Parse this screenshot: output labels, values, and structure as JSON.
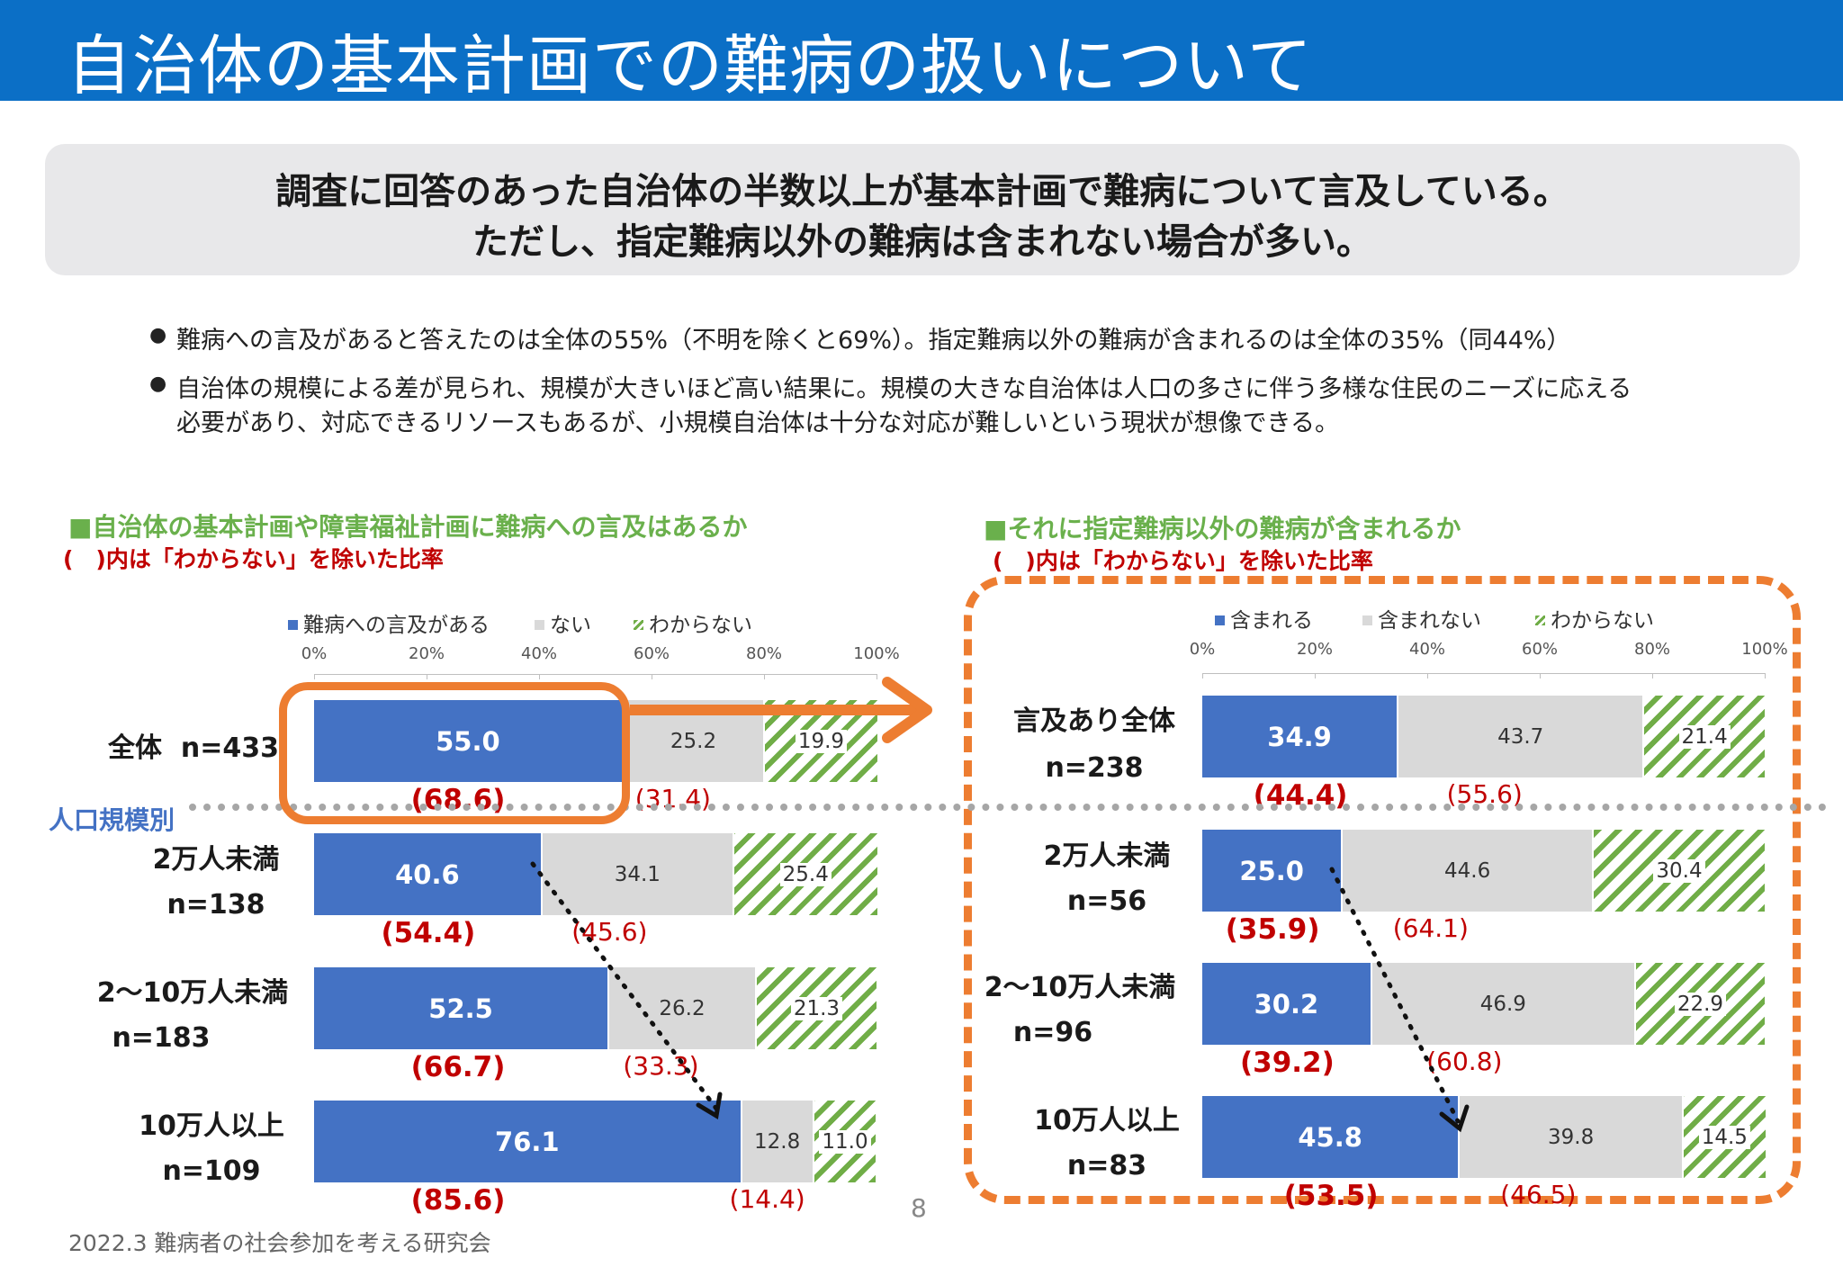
{
  "header": {
    "title": "自治体の基本計画での難病の扱いについて"
  },
  "summary": {
    "line1": "調査に回答のあった自治体の半数以上が基本計画で難病について言及している。",
    "line2": "ただし、指定難病以外の難病は含まれない場合が多い。"
  },
  "bullets": [
    {
      "text": "難病への言及があると答えたのは全体の55%（不明を除くと69%）。指定難病以外の難病が含まれるのは全体の35%（同44%）"
    },
    {
      "text": "自治体の規模による差が見られ、規模が大きいほど高い結果に。規模の大きな自治体は人口の多さに伴う多様な住民のニーズに応える",
      "text2": "必要があり、対応できるリソースもあるが、小規模自治体は十分な対応が難しいという現状が想像できる。"
    }
  ],
  "population_label": "人口規模別",
  "footer": "2022.3  難病者の社会参加を考える研究会",
  "page_number": "8",
  "colors": {
    "blue": "#4472c4",
    "grey": "#d9d9d9",
    "hatch": "#70ad47",
    "red": "#c00000",
    "orange": "#ed7d31",
    "header": "#0b6fc6"
  },
  "chart_data": [
    {
      "type": "bar",
      "orientation": "horizontal-stacked-100",
      "title": "■自治体の基本計画や障害福祉計画に難病への言及はあるか",
      "subtitle": "(　)内は「わからない」を除いた比率",
      "legend": [
        "難病への言及がある",
        "ない",
        "わからない"
      ],
      "legend_position": "top",
      "x_ticks": [
        "0%",
        "20%",
        "40%",
        "60%",
        "80%",
        "100%"
      ],
      "xlim": [
        0,
        100
      ],
      "categories": [
        {
          "name": "全体",
          "n": "n=433"
        },
        {
          "name": "2万人未満",
          "n": "n=138"
        },
        {
          "name": "2〜10万人未満",
          "n": "n=183"
        },
        {
          "name": "10万人以上",
          "n": "n=109"
        }
      ],
      "series": [
        {
          "name": "難病への言及がある",
          "values": [
            55.0,
            40.6,
            52.5,
            76.1
          ],
          "labels": [
            "55.0",
            "40.6",
            "52.5",
            "76.1"
          ]
        },
        {
          "name": "ない",
          "values": [
            25.2,
            34.1,
            26.2,
            12.8
          ],
          "labels": [
            "25.2",
            "34.1",
            "26.2",
            "12.8"
          ]
        },
        {
          "name": "わからない",
          "values": [
            19.9,
            25.4,
            21.3,
            11.0
          ],
          "labels": [
            "19.9",
            "25.4",
            "21.3",
            "11.0"
          ]
        }
      ],
      "excluding_unknown": {
        "positive": [
          "(68.6)",
          "(54.4)",
          "(66.7)",
          "(85.6)"
        ],
        "negative": [
          "(31.4)",
          "(45.6)",
          "(33.3)",
          "(14.4)"
        ]
      }
    },
    {
      "type": "bar",
      "orientation": "horizontal-stacked-100",
      "title": "■それに指定難病以外の難病が含まれるか",
      "subtitle": "(　)内は「わからない」を除いた比率",
      "legend": [
        "含まれる",
        "含まれない",
        "わからない"
      ],
      "legend_position": "top",
      "x_ticks": [
        "0%",
        "20%",
        "40%",
        "60%",
        "80%",
        "100%"
      ],
      "xlim": [
        0,
        100
      ],
      "categories": [
        {
          "name": "言及あり全体",
          "n": "n=238"
        },
        {
          "name": "2万人未満",
          "n": "n=56"
        },
        {
          "name": "2〜10万人未満",
          "n": "n=96"
        },
        {
          "name": "10万人以上",
          "n": "n=83"
        }
      ],
      "series": [
        {
          "name": "含まれる",
          "values": [
            34.9,
            25.0,
            30.2,
            45.8
          ],
          "labels": [
            "34.9",
            "25.0",
            "30.2",
            "45.8"
          ]
        },
        {
          "name": "含まれない",
          "values": [
            43.7,
            44.6,
            46.9,
            39.8
          ],
          "labels": [
            "43.7",
            "44.6",
            "46.9",
            "39.8"
          ]
        },
        {
          "name": "わからない",
          "values": [
            21.4,
            30.4,
            22.9,
            14.5
          ],
          "labels": [
            "21.4",
            "30.4",
            "22.9",
            "14.5"
          ]
        }
      ],
      "excluding_unknown": {
        "positive": [
          "(44.4)",
          "(35.9)",
          "(39.2)",
          "(53.5)"
        ],
        "negative": [
          "(55.6)",
          "(64.1)",
          "(60.8)",
          "(46.5)"
        ]
      }
    }
  ]
}
